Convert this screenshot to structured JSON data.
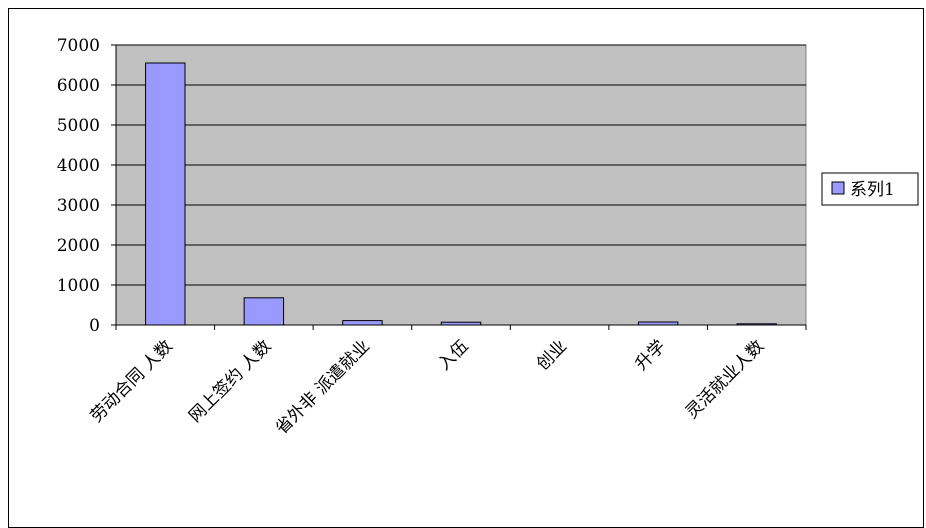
{
  "chart_data": {
    "type": "bar",
    "categories": [
      "劳动合同 人数",
      "网上签约 人数",
      "省外非 派遣就业",
      "入伍",
      "创业",
      "升学",
      "灵活就业人数"
    ],
    "series": [
      {
        "name": "系列1",
        "values": [
          6550,
          680,
          110,
          70,
          0,
          75,
          30
        ]
      }
    ],
    "ylim": [
      0,
      7000
    ],
    "yticks": [
      0,
      1000,
      2000,
      3000,
      4000,
      5000,
      6000,
      7000
    ],
    "grid": true,
    "legend_position": "right",
    "colors": {
      "bar_fill": "#9999ff",
      "plot_background": "#c0c0c0",
      "grid": "#000000"
    }
  }
}
